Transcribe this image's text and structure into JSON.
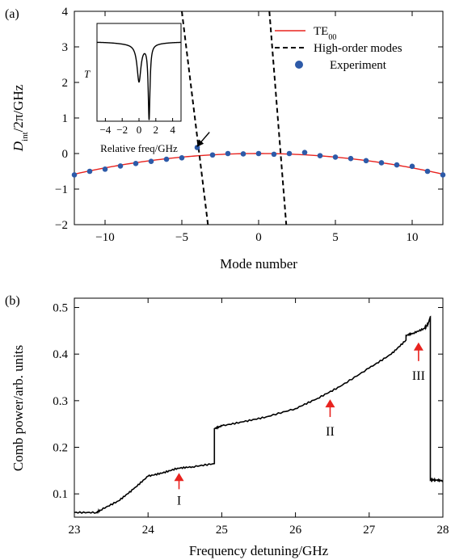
{
  "chart_data": [
    {
      "panel_label": "(a)",
      "type": "line",
      "xlabel": "Mode number",
      "ylabel_main": "D",
      "ylabel_sub": "int",
      "ylabel_rest": "/2π/GHz",
      "xlim": [
        -12,
        12
      ],
      "ylim": [
        -2,
        4
      ],
      "xticks": [
        -10,
        -5,
        0,
        5,
        10
      ],
      "yticks": [
        -2,
        -1,
        0,
        1,
        2,
        3,
        4
      ],
      "xtick_labels": [
        "−10",
        "−5",
        "0",
        "5",
        "10"
      ],
      "ytick_labels": [
        "−2",
        "−1",
        "0",
        "1",
        "2",
        "3",
        "4"
      ],
      "legend": {
        "position": "top-right",
        "entries": [
          {
            "main": "TE",
            "sub": "00",
            "style": "red-solid-line"
          },
          {
            "main": "High-order modes",
            "sub": "",
            "style": "black-dashed-line"
          },
          {
            "main": "Experiment",
            "sub": "",
            "style": "blue-dot"
          }
        ]
      },
      "series": [
        {
          "name": "TE00",
          "color": "#e8231f",
          "kind": "line",
          "curve": "parabola",
          "vertex": [
            0,
            0
          ],
          "y_at_12": -0.58
        },
        {
          "name": "High-order modes",
          "color": "#000000",
          "kind": "dashed",
          "lines": [
            {
              "x": [
                -5.0,
                -3.3
              ],
              "y": [
                4,
                -2
              ]
            },
            {
              "x": [
                0.7,
                1.8
              ],
              "y": [
                4,
                -2
              ]
            }
          ]
        },
        {
          "name": "Experiment",
          "color": "#2d5aa8",
          "kind": "scatter",
          "x": [
            -12,
            -11,
            -10,
            -9,
            -8,
            -7,
            -6,
            -5,
            -4,
            -3,
            -2,
            -1,
            0,
            1,
            2,
            3,
            4,
            5,
            6,
            7,
            8,
            9,
            10,
            11,
            12
          ],
          "y": [
            -0.6,
            -0.5,
            -0.44,
            -0.35,
            -0.28,
            -0.22,
            -0.16,
            -0.12,
            0.17,
            -0.04,
            0.0,
            -0.01,
            0.0,
            -0.02,
            0.0,
            0.03,
            -0.06,
            -0.1,
            -0.14,
            -0.2,
            -0.26,
            -0.32,
            -0.36,
            -0.5,
            -0.6
          ]
        }
      ],
      "arrow": {
        "from": [
          -3.2,
          0.6
        ],
        "to": [
          -4.0,
          0.2
        ]
      },
      "inset": {
        "xlabel": "Relative freq/GHz",
        "ylabel": "T",
        "xlim": [
          -5,
          5
        ],
        "ylim": [
          0,
          1.05
        ],
        "xticks": [
          -4,
          -2,
          0,
          2,
          4
        ],
        "xtick_labels": [
          "−4",
          "−2",
          "0",
          "2",
          "4"
        ],
        "curve": {
          "baseline": 0.85,
          "dips": [
            {
              "center": 0.0,
              "depth": 0.4,
              "width": 0.28
            },
            {
              "center": 1.2,
              "depth": 0.8,
              "width": 0.13
            }
          ]
        }
      }
    },
    {
      "panel_label": "(b)",
      "type": "line",
      "xlabel": "Frequency detuning/GHz",
      "ylabel": "Comb power/arb. units",
      "xlim": [
        23,
        28
      ],
      "ylim": [
        0.05,
        0.52
      ],
      "xticks": [
        23,
        24,
        25,
        26,
        27,
        28
      ],
      "yticks": [
        0.1,
        0.2,
        0.3,
        0.4,
        0.5
      ],
      "xtick_labels": [
        "23",
        "24",
        "25",
        "26",
        "27",
        "28"
      ],
      "ytick_labels": [
        "0.1",
        "0.2",
        "0.3",
        "0.4",
        "0.5"
      ],
      "series": [
        {
          "name": "",
          "color": "#000000",
          "x": [
            23.0,
            23.3,
            23.35,
            23.6,
            23.8,
            24.0,
            24.2,
            24.4,
            24.6,
            24.9,
            24.9,
            25.0,
            25.3,
            25.6,
            26.0,
            26.3,
            26.6,
            27.0,
            27.3,
            27.5,
            27.5,
            27.6,
            27.75,
            27.8,
            27.83,
            27.83,
            27.9,
            28.0
          ],
          "y": [
            0.06,
            0.06,
            0.065,
            0.085,
            0.11,
            0.138,
            0.145,
            0.155,
            0.158,
            0.165,
            0.24,
            0.246,
            0.255,
            0.265,
            0.283,
            0.305,
            0.33,
            0.37,
            0.4,
            0.43,
            0.44,
            0.445,
            0.455,
            0.465,
            0.48,
            0.13,
            0.13,
            0.128
          ]
        }
      ],
      "annotations": [
        {
          "text": "I",
          "x": 24.42,
          "arrow_y": [
            0.11,
            0.145
          ],
          "label_y": 0.077
        },
        {
          "text": "II",
          "x": 26.47,
          "arrow_y": [
            0.265,
            0.303
          ],
          "label_y": 0.225
        },
        {
          "text": "III",
          "x": 27.67,
          "arrow_y": [
            0.385,
            0.425
          ],
          "label_y": 0.345
        }
      ],
      "annotation_color": "#e8231f"
    }
  ]
}
